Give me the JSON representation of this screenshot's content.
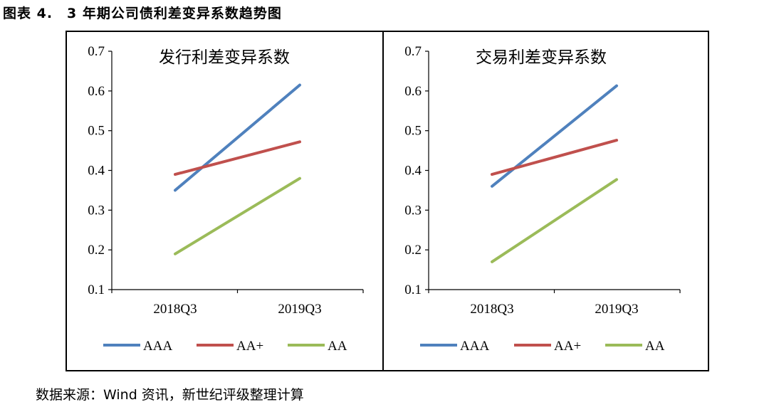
{
  "figure": {
    "title": "图表 4.　3 年期公司债利差变异系数趋势图",
    "source": "数据来源：Wind 资讯，新世纪评级整理计算"
  },
  "chart_data": [
    {
      "type": "line",
      "title": "发行利差变异系数",
      "categories": [
        "2018Q3",
        "2019Q3"
      ],
      "ylim": [
        0.1,
        0.7
      ],
      "yticks": [
        "0.1",
        "0.2",
        "0.3",
        "0.4",
        "0.5",
        "0.6",
        "0.7"
      ],
      "grid": false,
      "legend_position": "bottom",
      "series": [
        {
          "name": "AAA",
          "values": [
            0.35,
            0.615
          ],
          "color": "#4f81bd"
        },
        {
          "name": "AA+",
          "values": [
            0.39,
            0.472
          ],
          "color": "#c0504d"
        },
        {
          "name": "AA",
          "values": [
            0.19,
            0.38
          ],
          "color": "#9bbb59"
        }
      ]
    },
    {
      "type": "line",
      "title": "交易利差变异系数",
      "categories": [
        "2018Q3",
        "2019Q3"
      ],
      "ylim": [
        0.1,
        0.7
      ],
      "yticks": [
        "0.1",
        "0.2",
        "0.3",
        "0.4",
        "0.5",
        "0.6",
        "0.7"
      ],
      "grid": false,
      "legend_position": "bottom",
      "series": [
        {
          "name": "AAA",
          "values": [
            0.36,
            0.613
          ],
          "color": "#4f81bd"
        },
        {
          "name": "AA+",
          "values": [
            0.39,
            0.476
          ],
          "color": "#c0504d"
        },
        {
          "name": "AA",
          "values": [
            0.17,
            0.377
          ],
          "color": "#9bbb59"
        }
      ]
    }
  ]
}
